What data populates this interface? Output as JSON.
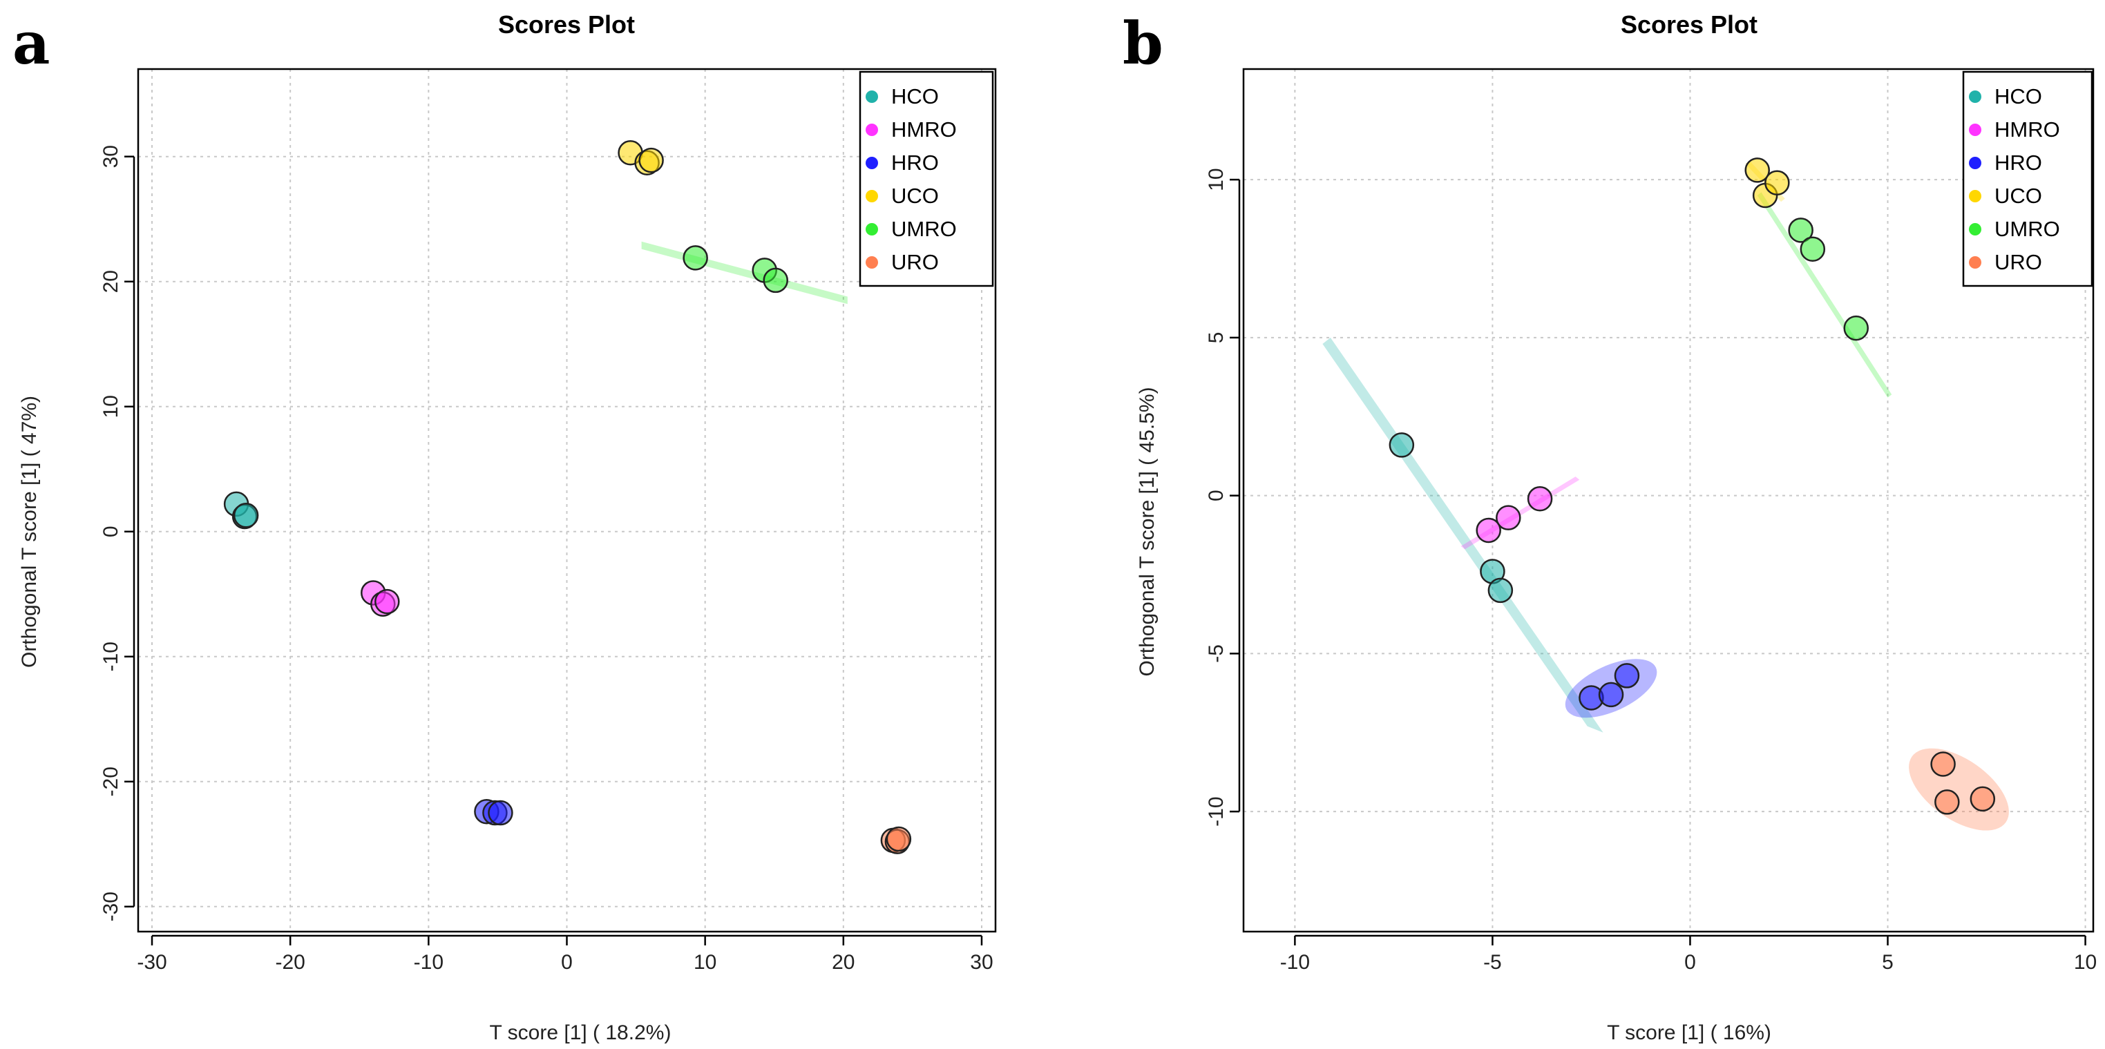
{
  "chart_data": [
    {
      "type": "scatter",
      "panel_label": "a",
      "title": "Scores Plot",
      "xlabel": "T score [1] ( 18.2%)",
      "ylabel": "Orthogonal T score [1] ( 47%)",
      "xlim": [
        -31,
        31
      ],
      "ylim": [
        -32,
        37
      ],
      "xticks": [
        -30,
        -20,
        -10,
        0,
        10,
        20,
        30
      ],
      "yticks": [
        -30,
        -20,
        -10,
        0,
        10,
        20,
        30
      ],
      "grid": true,
      "legend_position": "top-right",
      "series": [
        {
          "name": "HCO",
          "color": "#20B2AA",
          "points": [
            [
              -23.9,
              2.2
            ],
            [
              -23.3,
              1.2
            ],
            [
              -23.2,
              1.3
            ]
          ]
        },
        {
          "name": "HMRO",
          "color": "#FF33FF",
          "points": [
            [
              -14.0,
              -4.9
            ],
            [
              -13.3,
              -5.8
            ],
            [
              -13.0,
              -5.6
            ]
          ]
        },
        {
          "name": "HRO",
          "color": "#1F1FFF",
          "points": [
            [
              -5.8,
              -22.4
            ],
            [
              -5.2,
              -22.5
            ],
            [
              -4.8,
              -22.5
            ]
          ]
        },
        {
          "name": "UCO",
          "color": "#FFD700",
          "points": [
            [
              4.6,
              30.3
            ],
            [
              5.8,
              29.5
            ],
            [
              6.1,
              29.7
            ]
          ]
        },
        {
          "name": "UMRO",
          "color": "#33EE33",
          "points": [
            [
              9.3,
              21.9
            ],
            [
              14.3,
              20.9
            ],
            [
              15.1,
              20.1
            ]
          ]
        },
        {
          "name": "URO",
          "color": "#FF7F50",
          "points": [
            [
              23.6,
              -24.7
            ],
            [
              23.9,
              -24.8
            ],
            [
              24.0,
              -24.6
            ]
          ]
        }
      ],
      "ellipses": [
        {
          "series": "UMRO",
          "path": [
            [
              5.4,
              23.2
            ],
            [
              20.3,
              18.8
            ],
            [
              20.3,
              18.2
            ],
            [
              5.4,
              22.6
            ]
          ]
        }
      ]
    },
    {
      "type": "scatter",
      "panel_label": "b",
      "title": "Scores Plot",
      "xlabel": "T score [1] ( 16%)",
      "ylabel": "Orthogonal T score [1] ( 45.5%)",
      "xlim": [
        -11.3,
        10.2
      ],
      "ylim": [
        -13.8,
        13.5
      ],
      "xticks": [
        -10,
        -5,
        0,
        5,
        10
      ],
      "yticks": [
        -10,
        -5,
        0,
        5,
        10
      ],
      "grid": true,
      "legend_position": "top-right",
      "series": [
        {
          "name": "HCO",
          "color": "#20B2AA",
          "points": [
            [
              -7.3,
              1.6
            ],
            [
              -5.0,
              -2.4
            ],
            [
              -4.8,
              -3.0
            ]
          ]
        },
        {
          "name": "HMRO",
          "color": "#FF33FF",
          "points": [
            [
              -5.1,
              -1.1
            ],
            [
              -4.6,
              -0.7
            ],
            [
              -3.8,
              -0.1
            ]
          ]
        },
        {
          "name": "HRO",
          "color": "#1F1FFF",
          "points": [
            [
              -2.5,
              -6.4
            ],
            [
              -2.0,
              -6.3
            ],
            [
              -1.6,
              -5.7
            ]
          ]
        },
        {
          "name": "UCO",
          "color": "#FFD700",
          "points": [
            [
              1.7,
              10.3
            ],
            [
              1.9,
              9.5
            ],
            [
              2.2,
              9.9
            ]
          ]
        },
        {
          "name": "UMRO",
          "color": "#33EE33",
          "points": [
            [
              2.8,
              8.4
            ],
            [
              3.1,
              7.8
            ],
            [
              4.2,
              5.3
            ]
          ]
        },
        {
          "name": "URO",
          "color": "#FF7F50",
          "points": [
            [
              6.4,
              -8.5
            ],
            [
              6.5,
              -9.7
            ],
            [
              7.4,
              -9.6
            ]
          ]
        }
      ],
      "ellipses": [
        {
          "series": "HCO",
          "path": [
            [
              -9.1,
              5.0
            ],
            [
              -2.2,
              -7.5
            ],
            [
              -2.6,
              -7.3
            ],
            [
              -9.3,
              4.8
            ]
          ]
        },
        {
          "series": "HMRO",
          "path": [
            [
              -5.8,
              -1.6
            ],
            [
              -2.9,
              0.6
            ],
            [
              -2.8,
              0.5
            ],
            [
              -5.7,
              -1.7
            ]
          ]
        },
        {
          "series": "UMRO",
          "path": [
            [
              1.8,
              9.6
            ],
            [
              5.1,
              3.2
            ],
            [
              5.0,
              3.1
            ],
            [
              1.7,
              9.5
            ]
          ]
        },
        {
          "series": "UCO",
          "path": [
            [
              1.5,
              10.6
            ],
            [
              2.4,
              9.4
            ],
            [
              2.3,
              9.3
            ],
            [
              1.4,
              10.5
            ]
          ]
        }
      ],
      "filled_ellipses": [
        {
          "series": "HRO",
          "center": [
            -2.0,
            -6.1
          ],
          "rx_data": 1.25,
          "ry_data": 0.72,
          "rotate_deg": -25
        },
        {
          "series": "URO",
          "center": [
            6.8,
            -9.3
          ],
          "rx_data": 1.45,
          "ry_data": 0.95,
          "rotate_deg": 35
        }
      ]
    }
  ]
}
